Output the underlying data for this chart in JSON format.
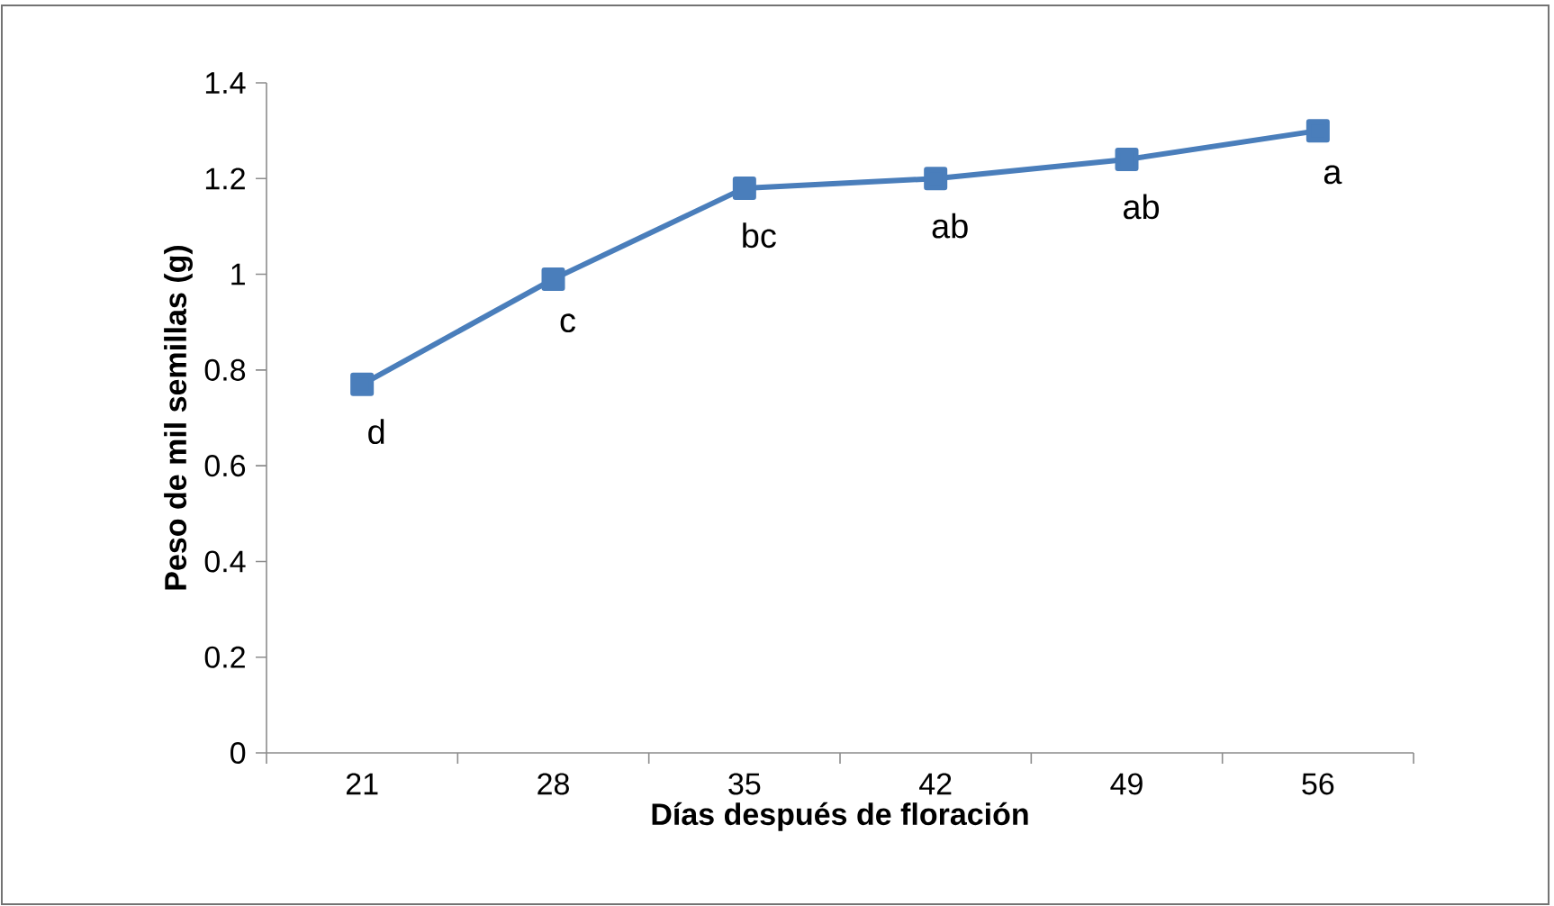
{
  "chart_data": {
    "type": "line",
    "xlabel": "Días después de floración",
    "ylabel": "Peso de mil semillas (g)",
    "categories": [
      "21",
      "28",
      "35",
      "42",
      "49",
      "56"
    ],
    "series": [
      {
        "color": "#4a7ebb",
        "values": [
          0.77,
          0.99,
          1.18,
          1.2,
          1.24,
          1.3
        ]
      }
    ],
    "ylim": [
      0,
      1.4
    ],
    "yticks": [
      0,
      0.2,
      0.4,
      0.6,
      0.8,
      1,
      1.2,
      1.4
    ],
    "marker": "square",
    "line_style": "solid",
    "grid": false,
    "annotations": [
      {
        "text": "d",
        "x": "21",
        "y": 0.77
      },
      {
        "text": "c",
        "x": "28",
        "y": 0.99
      },
      {
        "text": "bc",
        "x": "35",
        "y": 1.18
      },
      {
        "text": "ab",
        "x": "42",
        "y": 1.2
      },
      {
        "text": "ab",
        "x": "49",
        "y": 1.24
      },
      {
        "text": "a",
        "x": "56",
        "y": 1.3
      }
    ]
  }
}
